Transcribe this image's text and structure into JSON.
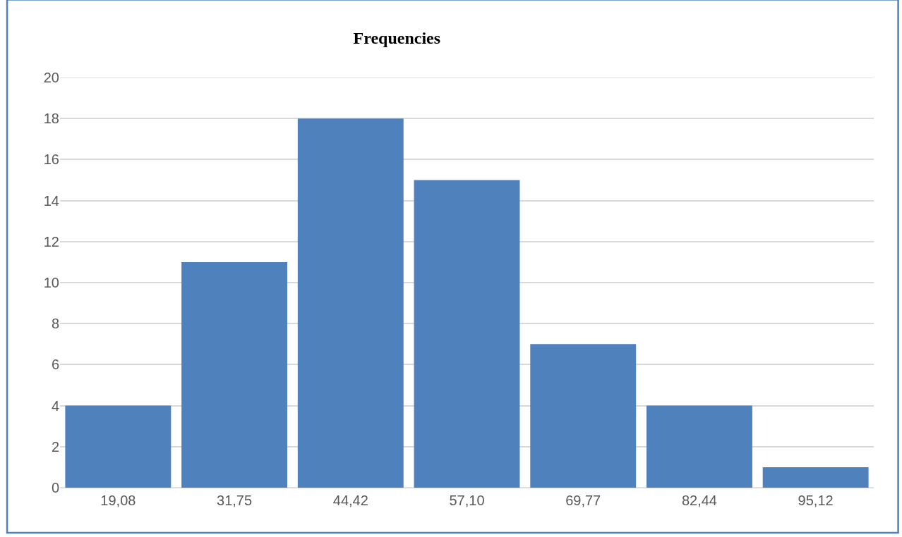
{
  "chart_data": {
    "type": "bar",
    "title": "Frequencies",
    "categories": [
      "19,08",
      "31,75",
      "44,42",
      "57,10",
      "69,77",
      "82,44",
      "95,12"
    ],
    "values": [
      4,
      11,
      18,
      15,
      7,
      4,
      1
    ],
    "color": "#4f81bd",
    "ylim": [
      0,
      20
    ],
    "yticks": [
      0,
      2,
      4,
      6,
      8,
      10,
      12,
      14,
      16,
      18,
      20
    ],
    "grid": "y"
  }
}
